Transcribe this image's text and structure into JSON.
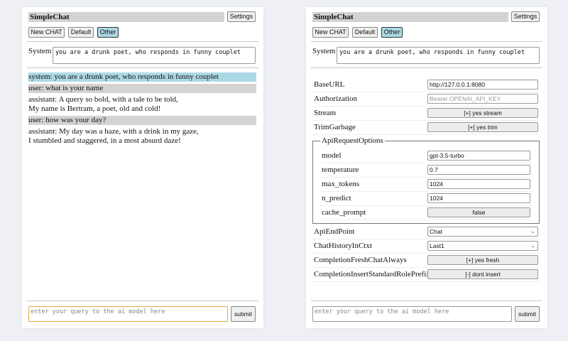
{
  "app_title": "SimpleChat",
  "settings_label": "Settings",
  "buttons": {
    "new_chat": "New CHAT",
    "default": "Default",
    "other": "Other"
  },
  "system": {
    "label": "System",
    "value": "you are a drunk poet, who responds in funny couplet"
  },
  "chat": [
    {
      "role": "system",
      "text": "system: you are a drunk poet, who responds in funny couplet"
    },
    {
      "role": "user",
      "text": "user: what is your name"
    },
    {
      "role": "assistant",
      "text": "assistant: A query so bold, with a tale to be told,\nMy name is Bertram, a poet, old and cold!"
    },
    {
      "role": "user",
      "text": "user: how was your day?"
    },
    {
      "role": "assistant",
      "text": "assistant: My day was a haze, with a drink in my gaze,\nI stumbled and staggered, in a most absurd daze!"
    }
  ],
  "query": {
    "placeholder": "enter your query to the ai model here",
    "submit": "submit"
  },
  "settings": {
    "base_url": {
      "label": "BaseURL",
      "value": "http://127.0.0.1:8080"
    },
    "authorization": {
      "label": "Authorization",
      "placeholder": "Bearer OPENAI_API_KEY"
    },
    "stream": {
      "label": "Stream",
      "value": "[+] yes stream"
    },
    "trim_garbage": {
      "label": "TrimGarbage",
      "value": "[+] yes trim"
    },
    "api_request_options": {
      "legend": "ApiRequestOptions",
      "model": {
        "label": "model",
        "value": "gpt-3.5-turbo"
      },
      "temperature": {
        "label": "temperature",
        "value": "0.7"
      },
      "max_tokens": {
        "label": "max_tokens",
        "value": "1024"
      },
      "n_predict": {
        "label": "n_predict",
        "value": "1024"
      },
      "cache_prompt": {
        "label": "cache_prompt",
        "value": "false"
      }
    },
    "api_endpoint": {
      "label": "ApiEndPoint",
      "value": "Chat"
    },
    "chat_history": {
      "label": "ChatHistoryInCtxt",
      "value": "Last1"
    },
    "fresh_chat": {
      "label": "CompletionFreshChatAlways",
      "value": "[+] yes fresh"
    },
    "role_prefix": {
      "label": "CompletionInsertStandardRolePrefix",
      "value": "[-] dont insert"
    }
  },
  "colors": {
    "system_msg": "#add8e6",
    "user_msg": "#d3d3d3",
    "active_button": "#add8e6",
    "focus_border": "#e0a840"
  }
}
